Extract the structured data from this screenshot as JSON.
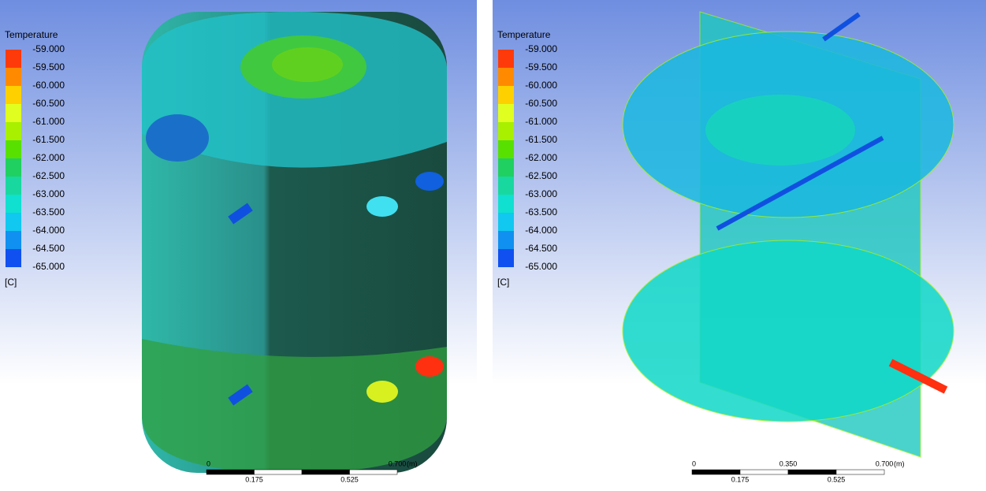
{
  "panels": [
    {
      "legend": {
        "title": "Temperature",
        "labels": [
          "-59.000",
          "-59.500",
          "-60.000",
          "-60.500",
          "-61.000",
          "-61.500",
          "-62.000",
          "-62.500",
          "-63.000",
          "-63.500",
          "-64.000",
          "-64.500",
          "-65.000"
        ],
        "colors": [
          "#ff3a0a",
          "#ff8a00",
          "#ffd000",
          "#e0ff20",
          "#a8f000",
          "#58e000",
          "#20d060",
          "#18d8a0",
          "#10e0d0",
          "#10c8f0",
          "#1090f0",
          "#1050f0"
        ],
        "unit": "[C]"
      },
      "scale_bar": {
        "top": [
          "0",
          "0.700"
        ],
        "bottom": [
          "0.175",
          "0.525"
        ],
        "unit": "(m)"
      }
    },
    {
      "legend": {
        "title": "Temperature",
        "labels": [
          "-59.000",
          "-59.500",
          "-60.000",
          "-60.500",
          "-61.000",
          "-61.500",
          "-62.000",
          "-62.500",
          "-63.000",
          "-63.500",
          "-64.000",
          "-64.500",
          "-65.000"
        ],
        "colors": [
          "#ff3a0a",
          "#ff8a00",
          "#ffd000",
          "#e0ff20",
          "#a8f000",
          "#58e000",
          "#20d060",
          "#18d8a0",
          "#10e0d0",
          "#10c8f0",
          "#1090f0",
          "#1050f0"
        ],
        "unit": "[C]"
      },
      "scale_bar": {
        "top": [
          "0",
          "0.350",
          "0.700"
        ],
        "bottom": [
          "0.175",
          "0.525"
        ],
        "unit": "(m)"
      }
    }
  ]
}
